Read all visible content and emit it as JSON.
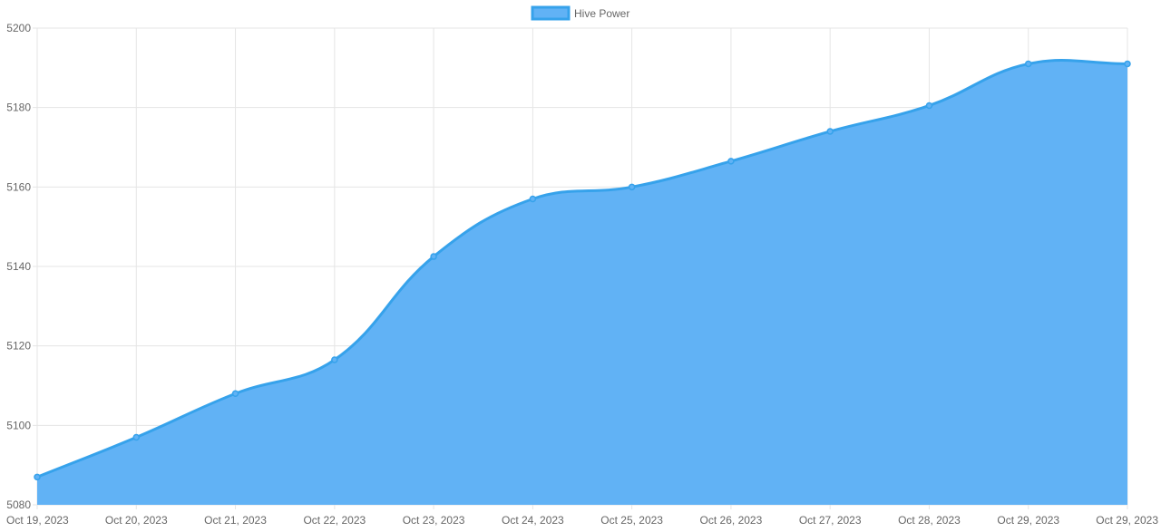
{
  "chart_data": {
    "type": "area",
    "title": "",
    "xlabel": "",
    "ylabel": "",
    "legend": {
      "position": "top-center",
      "entries": [
        "Hive Power"
      ]
    },
    "grid": true,
    "ylim": [
      5080,
      5200
    ],
    "yticks": [
      5080,
      5100,
      5120,
      5140,
      5160,
      5180,
      5200
    ],
    "categories": [
      "Oct 19, 2023",
      "Oct 20, 2023",
      "Oct 21, 2023",
      "Oct 22, 2023",
      "Oct 23, 2023",
      "Oct 24, 2023",
      "Oct 25, 2023",
      "Oct 26, 2023",
      "Oct 27, 2023",
      "Oct 28, 2023",
      "Oct 29, 2023",
      "Oct 29, 2023"
    ],
    "series": [
      {
        "name": "Hive Power",
        "values": [
          5087,
          5097,
          5108,
          5116.5,
          5142.5,
          5157,
          5160,
          5166.5,
          5174,
          5180.5,
          5191,
          5191
        ],
        "line_color": "#36A2EB",
        "fill_color": "#61B2F5"
      }
    ]
  }
}
